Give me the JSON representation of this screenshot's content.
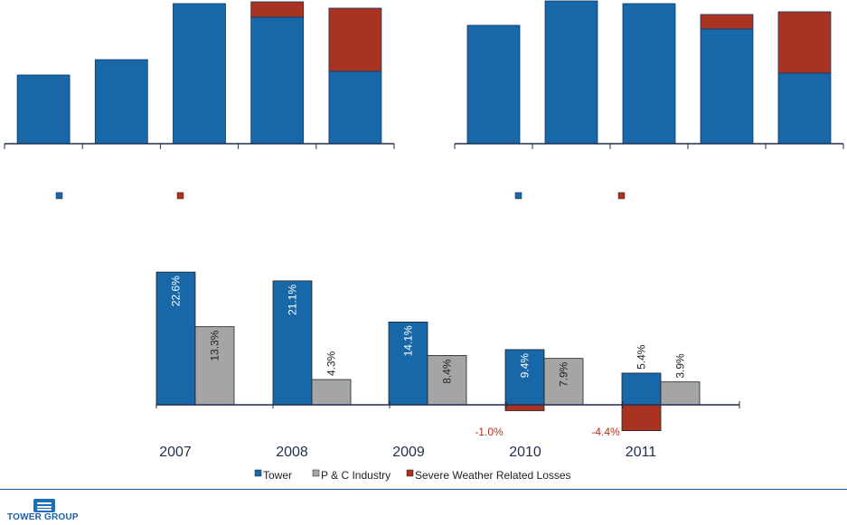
{
  "colors": {
    "tower": "#1767a9",
    "industry": "#a5a5a5",
    "severe": "#a93321",
    "axis": "#1f2f4f",
    "negative_label": "#b0321f"
  },
  "chart_data": [
    {
      "type": "bar",
      "stacked": true,
      "categories": [
        "",
        "",
        "",
        "",
        ""
      ],
      "series": [
        {
          "color": "tower",
          "values": [
            76,
            93,
            155,
            140,
            80
          ]
        },
        {
          "color": "severe",
          "values": [
            0,
            0,
            0,
            17,
            70
          ]
        }
      ],
      "ylim": [
        0,
        158
      ],
      "legend": [
        {
          "color": "tower",
          "label": ""
        },
        {
          "color": "severe",
          "label": ""
        }
      ]
    },
    {
      "type": "bar",
      "stacked": true,
      "categories": [
        "",
        "",
        "",
        "",
        ""
      ],
      "series": [
        {
          "color": "tower",
          "values": [
            131,
            158,
            155,
            127,
            78
          ]
        },
        {
          "color": "severe",
          "values": [
            0,
            0,
            0,
            16,
            68
          ]
        }
      ],
      "ylim": [
        0,
        158
      ],
      "legend": [
        {
          "color": "tower",
          "label": ""
        },
        {
          "color": "severe",
          "label": ""
        }
      ]
    },
    {
      "type": "bar",
      "categories": [
        "2007",
        "2008",
        "2009",
        "2010",
        "2011"
      ],
      "series": [
        {
          "name": "Tower",
          "color": "tower",
          "values": [
            22.6,
            21.1,
            14.1,
            9.4,
            5.4
          ],
          "labels": [
            "22.6%",
            "21.1%",
            "14.1%",
            "9.4%",
            "5.4%"
          ]
        },
        {
          "name": "P & C Industry",
          "color": "industry",
          "values": [
            13.3,
            4.3,
            8.4,
            7.9,
            3.9
          ],
          "labels": [
            "13.3%",
            "4.3%",
            "8.4%",
            "7.9%",
            "3.9%"
          ]
        },
        {
          "name": "Severe Weather Related Losses",
          "color": "severe",
          "values": [
            0,
            0,
            0,
            -1.0,
            -4.4
          ],
          "labels": [
            "",
            "",
            "",
            "-1.0%",
            "-4.4%"
          ]
        }
      ],
      "ylim": [
        -5.5,
        23.5
      ],
      "legend_position": "bottom-center"
    }
  ],
  "logo": {
    "text": "TOWER GROUP"
  }
}
